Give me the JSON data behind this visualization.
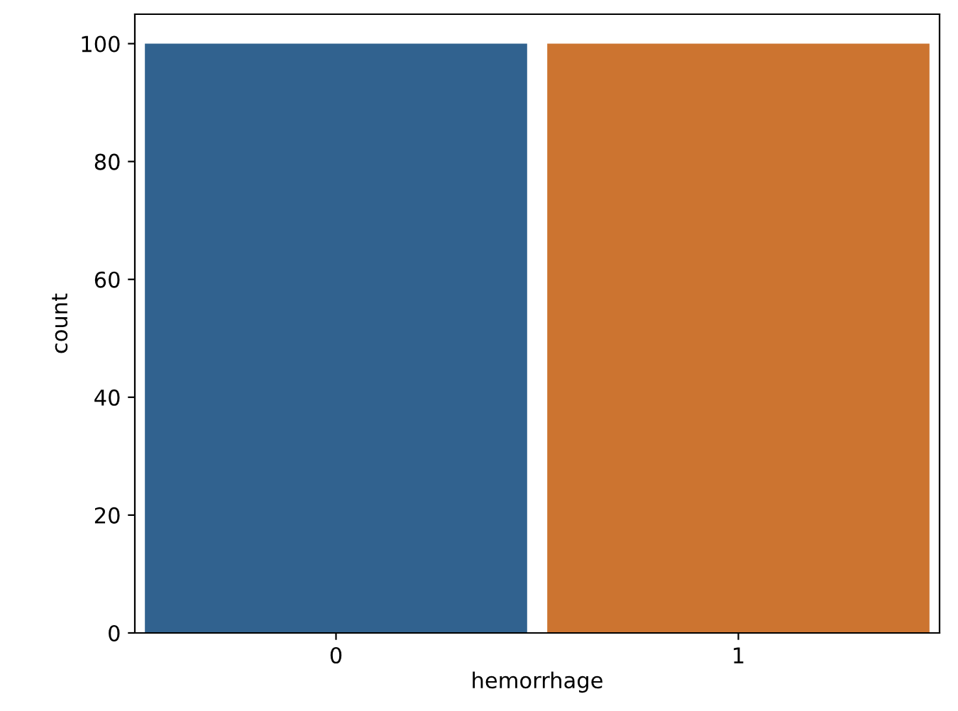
{
  "chart_data": {
    "type": "bar",
    "xlabel": "hemorrhage",
    "ylabel": "count",
    "categories": [
      "0",
      "1"
    ],
    "values": [
      100,
      100
    ],
    "colors": [
      "#31628f",
      "#cc7430"
    ],
    "ylim": [
      0,
      105
    ],
    "yticks": [
      0,
      20,
      40,
      60,
      80,
      100
    ],
    "grid": false
  }
}
